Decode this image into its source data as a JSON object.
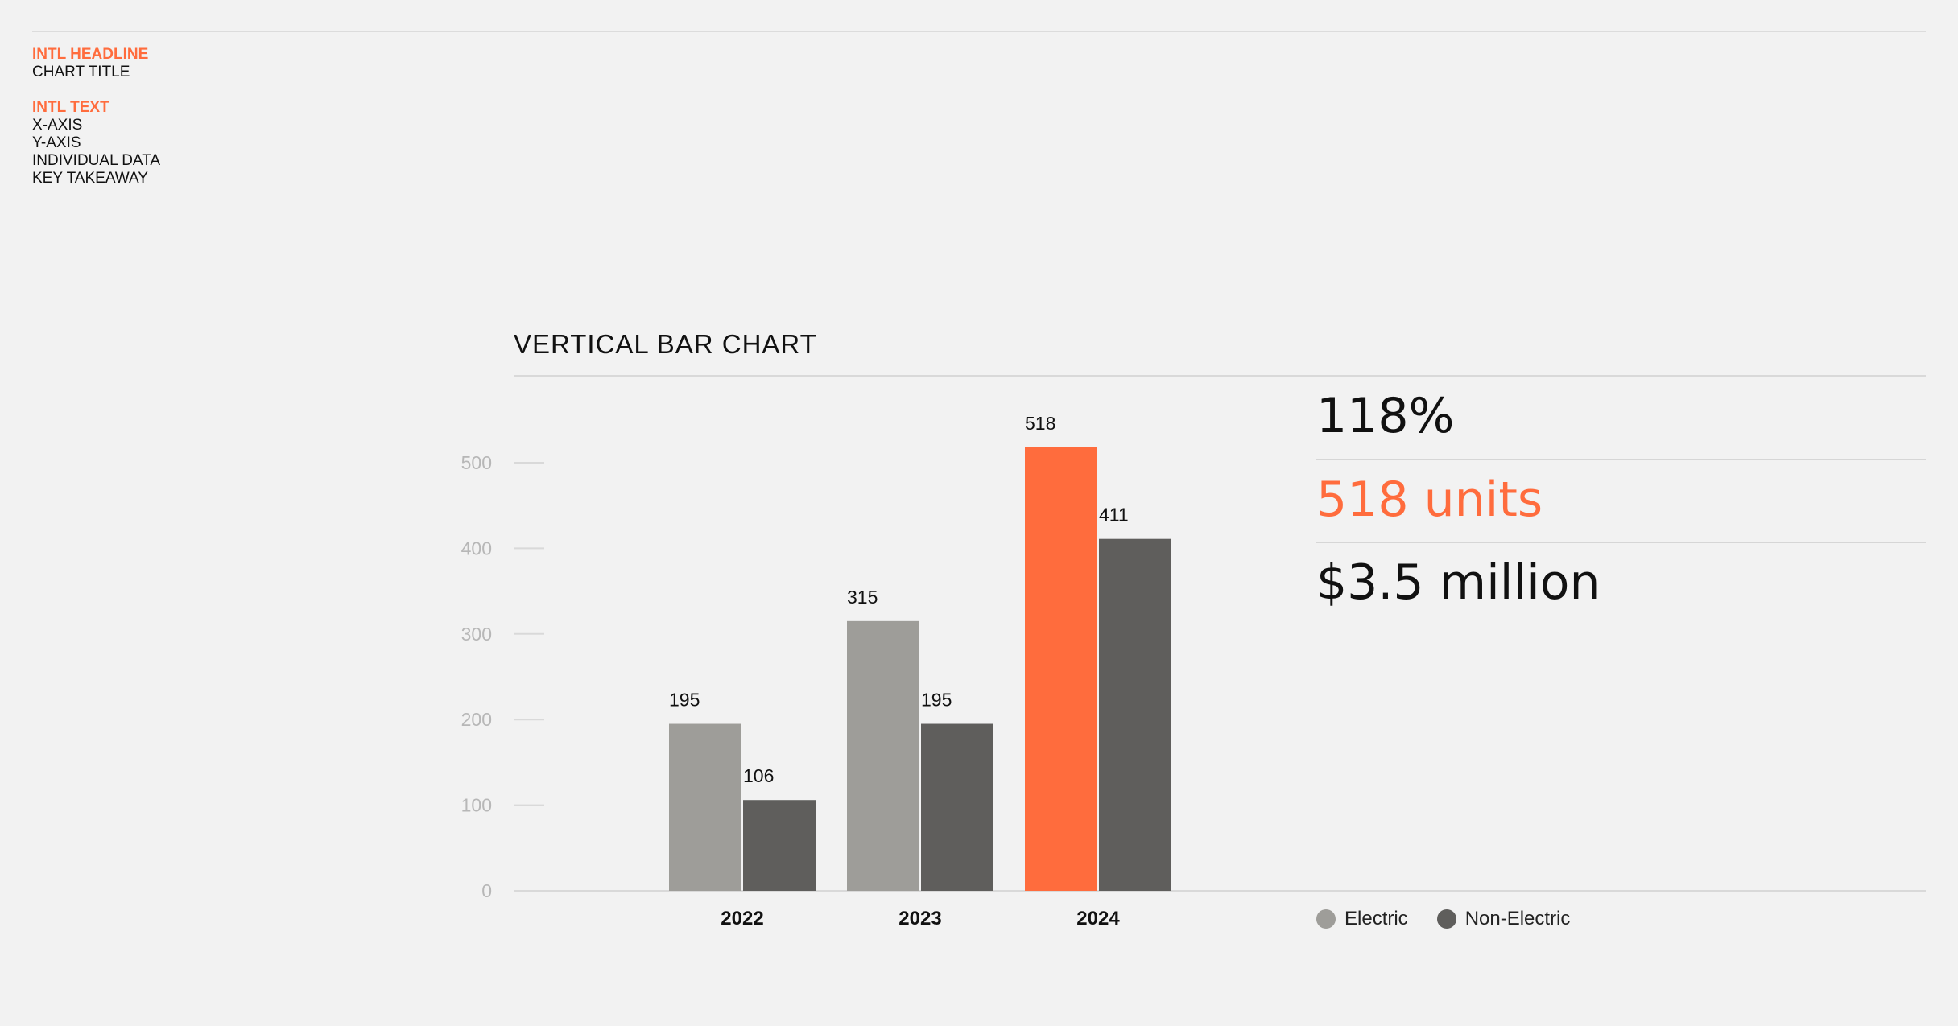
{
  "guide": {
    "headline_label": "INTL HEADLINE",
    "headline_items": [
      "CHART TITLE"
    ],
    "text_label": "INTL TEXT",
    "text_items": [
      "X-AXIS",
      "Y-AXIS",
      "INDIVIDUAL DATA",
      "KEY TAKEAWAY"
    ]
  },
  "takeaways": [
    "118%",
    "518 units",
    "$3.5 million"
  ],
  "colors": {
    "electric": "#9e9d99",
    "non_electric": "#5f5e5c",
    "highlight": "#ff6c3d",
    "grid": "#d9d9d9",
    "axis_label": "#b7b7b7"
  },
  "chart_data": {
    "type": "bar",
    "title": "VERTICAL BAR CHART",
    "categories": [
      "2022",
      "2023",
      "2024"
    ],
    "series": [
      {
        "name": "Electric",
        "values": [
          195,
          315,
          518
        ]
      },
      {
        "name": "Non-Electric",
        "values": [
          106,
          195,
          411
        ]
      }
    ],
    "ylim": [
      0,
      500
    ],
    "yticks": [
      0,
      100,
      200,
      300,
      400,
      500
    ],
    "highlight": {
      "category": "2024",
      "series": "Electric"
    },
    "legend_position": "right"
  }
}
